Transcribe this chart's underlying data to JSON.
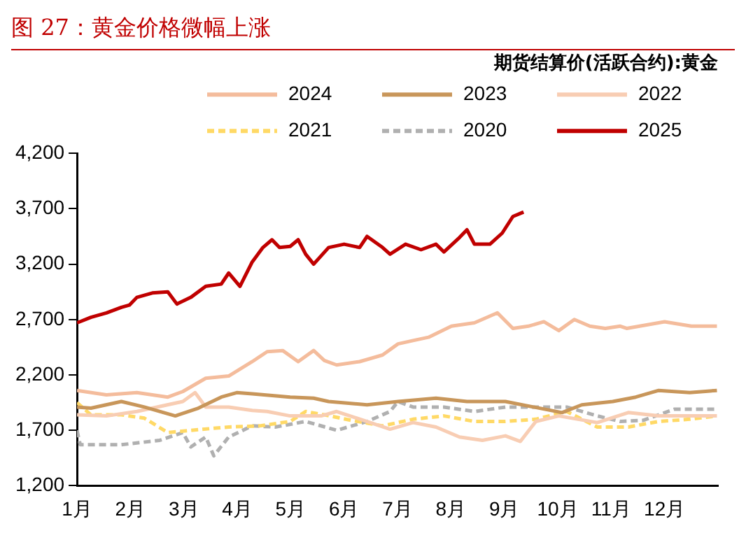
{
  "chart_data": {
    "type": "line",
    "title": "图 27：黄金价格微幅上涨",
    "subtitle": "期货结算价(活跃合约):黄金",
    "xlim": [
      1,
      13
    ],
    "xticks": [
      {
        "value": 1,
        "label": "1月"
      },
      {
        "value": 2,
        "label": "2月"
      },
      {
        "value": 3,
        "label": "3月"
      },
      {
        "value": 4,
        "label": "4月"
      },
      {
        "value": 5,
        "label": "5月"
      },
      {
        "value": 6,
        "label": "6月"
      },
      {
        "value": 7,
        "label": "7月"
      },
      {
        "value": 8,
        "label": "8月"
      },
      {
        "value": 9,
        "label": "9月"
      },
      {
        "value": 10,
        "label": "10月"
      },
      {
        "value": 11,
        "label": "11月"
      },
      {
        "value": 12,
        "label": "12月"
      }
    ],
    "ylim": [
      1200,
      4200
    ],
    "yticks": [
      {
        "value": 1200,
        "label": "1,200"
      },
      {
        "value": 1700,
        "label": "1,700"
      },
      {
        "value": 2200,
        "label": "2,200"
      },
      {
        "value": 2700,
        "label": "2,700"
      },
      {
        "value": 3200,
        "label": "3,200"
      },
      {
        "value": 3700,
        "label": "3,700"
      },
      {
        "value": 4200,
        "label": "4,200"
      }
    ],
    "grid": false,
    "legend": "top",
    "marker": "none",
    "series": [
      {
        "name": "2024",
        "color": "#f4bc9c",
        "line_style": "solid",
        "x": [
          1,
          1.55,
          2.12,
          2.7,
          2.98,
          3.41,
          3.84,
          4.28,
          4.56,
          4.85,
          5.14,
          5.43,
          5.63,
          5.86,
          6.29,
          6.72,
          7.01,
          7.29,
          7.58,
          8.01,
          8.44,
          8.87,
          9.16,
          9.45,
          9.74,
          10.02,
          10.31,
          10.6,
          10.89,
          11.17,
          11.29,
          12.0,
          12.5,
          12.98
        ],
        "values": [
          2060,
          2020,
          2040,
          2000,
          2050,
          2170,
          2190,
          2320,
          2410,
          2420,
          2320,
          2420,
          2330,
          2290,
          2320,
          2380,
          2480,
          2510,
          2540,
          2640,
          2670,
          2760,
          2620,
          2640,
          2680,
          2600,
          2700,
          2640,
          2620,
          2640,
          2620,
          2680,
          2640,
          2640
        ]
      },
      {
        "name": "2023",
        "color": "#c8965a",
        "line_style": "solid",
        "x": [
          1,
          1.26,
          1.83,
          2.26,
          2.84,
          3.27,
          3.7,
          3.99,
          4.28,
          4.99,
          5.43,
          5.71,
          6.43,
          7.01,
          7.72,
          8.3,
          9.02,
          10.08,
          10.45,
          11.03,
          11.46,
          11.89,
          12.47,
          12.98
        ],
        "values": [
          1910,
          1900,
          1960,
          1910,
          1830,
          1900,
          2000,
          2040,
          2030,
          2000,
          1990,
          1960,
          1930,
          1960,
          1990,
          1960,
          1960,
          1860,
          1930,
          1960,
          2000,
          2060,
          2040,
          2060
        ]
      },
      {
        "name": "2022",
        "color": "#f8cdb3",
        "line_style": "solid",
        "x": [
          1,
          1.55,
          2.12,
          2.98,
          3.21,
          3.41,
          3.84,
          4.28,
          4.56,
          4.99,
          5.57,
          5.86,
          6.43,
          6.86,
          7.29,
          7.72,
          8.16,
          8.59,
          9.02,
          9.3,
          9.59,
          10.02,
          10.74,
          11.32,
          11.89,
          12.98
        ],
        "values": [
          1840,
          1830,
          1870,
          1960,
          2040,
          1910,
          1910,
          1880,
          1870,
          1830,
          1830,
          1870,
          1780,
          1710,
          1770,
          1730,
          1640,
          1610,
          1650,
          1600,
          1780,
          1830,
          1770,
          1860,
          1830,
          1830
        ]
      },
      {
        "name": "2021",
        "color": "#ffd966",
        "line_style": "dashed",
        "x": [
          1,
          1.26,
          1.83,
          2.26,
          2.7,
          3.13,
          3.84,
          4.42,
          4.99,
          5.28,
          5.63,
          6.14,
          6.72,
          7.29,
          7.87,
          8.44,
          9.02,
          9.59,
          10.17,
          10.74,
          11.32,
          11.89,
          12.47,
          12.98
        ],
        "values": [
          1950,
          1840,
          1840,
          1810,
          1680,
          1700,
          1730,
          1740,
          1780,
          1870,
          1840,
          1790,
          1740,
          1800,
          1830,
          1780,
          1780,
          1800,
          1870,
          1730,
          1730,
          1780,
          1800,
          1830
        ]
      },
      {
        "name": "2020",
        "color": "#b0b0b0",
        "line_style": "dashed",
        "x": [
          1,
          1.06,
          1.83,
          2.55,
          2.98,
          3.13,
          3.41,
          3.56,
          3.84,
          4.28,
          4.71,
          5.28,
          5.86,
          6.43,
          6.86,
          7.01,
          7.29,
          7.87,
          8.44,
          9.02,
          9.59,
          10.17,
          10.74,
          11.17,
          11.6,
          12.18,
          12.98
        ],
        "values": [
          1700,
          1570,
          1570,
          1610,
          1680,
          1550,
          1640,
          1470,
          1640,
          1740,
          1730,
          1780,
          1700,
          1780,
          1870,
          1960,
          1910,
          1910,
          1870,
          1910,
          1910,
          1910,
          1830,
          1780,
          1790,
          1890,
          1890
        ]
      },
      {
        "name": "2025",
        "color": "#c00000",
        "line_style": "solid",
        "x": [
          1,
          1.26,
          1.55,
          1.83,
          1.98,
          2.12,
          2.41,
          2.7,
          2.87,
          3.13,
          3.41,
          3.7,
          3.84,
          4.05,
          4.28,
          4.48,
          4.65,
          4.79,
          4.99,
          5.14,
          5.28,
          5.43,
          5.71,
          6.0,
          6.29,
          6.43,
          6.72,
          6.86,
          7.15,
          7.44,
          7.72,
          7.87,
          8.16,
          8.3,
          8.44,
          8.73,
          8.96,
          9.16,
          9.36
        ],
        "values": [
          2670,
          2720,
          2760,
          2810,
          2830,
          2900,
          2940,
          2950,
          2840,
          2900,
          3000,
          3020,
          3120,
          3000,
          3220,
          3350,
          3420,
          3350,
          3360,
          3420,
          3290,
          3200,
          3350,
          3380,
          3350,
          3450,
          3350,
          3290,
          3380,
          3330,
          3380,
          3310,
          3440,
          3510,
          3380,
          3380,
          3480,
          3630,
          3670
        ]
      }
    ]
  }
}
